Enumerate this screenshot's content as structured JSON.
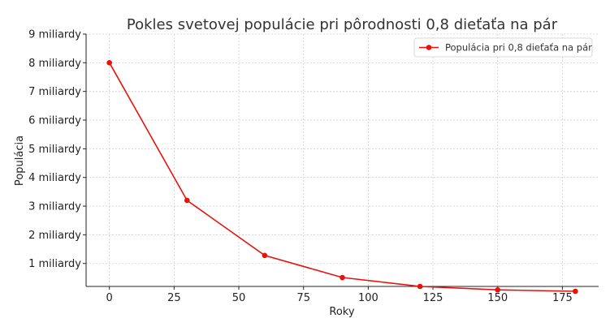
{
  "chart_data": {
    "type": "line",
    "title": "Pokles svetovej populácie pri pôrodnosti 0,8 dieťaťa na pár",
    "xlabel": "Roky",
    "ylabel": "Populácia",
    "xlim": [
      -9,
      189
    ],
    "ylim": [
      0.2,
      9
    ],
    "xticks": [
      0,
      25,
      50,
      75,
      100,
      125,
      150,
      175
    ],
    "yticks": [
      {
        "value": 1,
        "label": "1 miliardy"
      },
      {
        "value": 2,
        "label": "2 miliardy"
      },
      {
        "value": 3,
        "label": "3 miliardy"
      },
      {
        "value": 4,
        "label": "4 miliardy"
      },
      {
        "value": 5,
        "label": "5 miliardy"
      },
      {
        "value": 6,
        "label": "6 miliardy"
      },
      {
        "value": 7,
        "label": "7 miliardy"
      },
      {
        "value": 8,
        "label": "8 miliardy"
      },
      {
        "value": 9,
        "label": "9 miliardy"
      }
    ],
    "grid": true,
    "legend_position": "top-right",
    "series": [
      {
        "name": "Populácia pri 0,8 dieťaťa na pár",
        "color": "#e8120c",
        "x": [
          0,
          30,
          60,
          90,
          120,
          150,
          180
        ],
        "y": [
          8.0,
          3.2,
          1.28,
          0.51,
          0.2,
          0.08,
          0.03
        ]
      }
    ]
  }
}
